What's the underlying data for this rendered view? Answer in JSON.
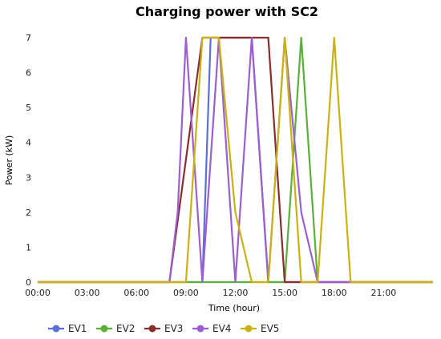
{
  "chart_data": {
    "type": "line",
    "title": "Charging power with SC2",
    "xlabel": "Time (hour)",
    "ylabel": "Power (kW)",
    "xlim": [
      0,
      24
    ],
    "ylim": [
      0,
      7
    ],
    "x_ticks": [
      "00:00",
      "03:00",
      "06:00",
      "09:00",
      "12:00",
      "15:00",
      "18:00",
      "21:00"
    ],
    "x_tick_values": [
      0,
      3,
      6,
      9,
      12,
      15,
      18,
      21
    ],
    "y_ticks": [
      0,
      1,
      2,
      3,
      4,
      5,
      6,
      7
    ],
    "grid": false,
    "legend_position": "bottom",
    "series": [
      {
        "name": "EV1",
        "color": "#5b6fd6",
        "points": [
          [
            0,
            0
          ],
          [
            10,
            0
          ],
          [
            10.5,
            7
          ],
          [
            13,
            7
          ],
          [
            14,
            0
          ],
          [
            24,
            0
          ]
        ]
      },
      {
        "name": "EV2",
        "color": "#5ab03a",
        "points": [
          [
            0,
            0
          ],
          [
            15,
            0
          ],
          [
            16,
            7
          ],
          [
            17,
            0
          ],
          [
            24,
            0
          ]
        ]
      },
      {
        "name": "EV3",
        "color": "#8b2d2d",
        "points": [
          [
            0,
            0
          ],
          [
            8,
            0
          ],
          [
            10,
            7
          ],
          [
            14,
            7
          ],
          [
            15,
            0
          ],
          [
            24,
            0
          ]
        ]
      },
      {
        "name": "EV4",
        "color": "#9b5fd0",
        "points": [
          [
            0,
            0
          ],
          [
            8,
            0
          ],
          [
            8.5,
            2
          ],
          [
            9,
            7
          ],
          [
            10,
            0
          ],
          [
            11,
            7
          ],
          [
            12,
            0
          ],
          [
            13,
            7
          ],
          [
            14,
            0
          ],
          [
            15,
            7
          ],
          [
            16,
            2
          ],
          [
            17,
            0
          ],
          [
            24,
            0
          ]
        ]
      },
      {
        "name": "EV5",
        "color": "#c9b212",
        "points": [
          [
            0,
            0
          ],
          [
            9,
            0
          ],
          [
            10,
            7
          ],
          [
            11,
            7
          ],
          [
            12,
            2
          ],
          [
            13,
            0
          ],
          [
            14,
            0
          ],
          [
            15,
            7
          ],
          [
            16,
            0
          ],
          [
            17,
            0
          ],
          [
            18,
            7
          ],
          [
            19,
            0
          ],
          [
            24,
            0
          ]
        ]
      }
    ]
  }
}
